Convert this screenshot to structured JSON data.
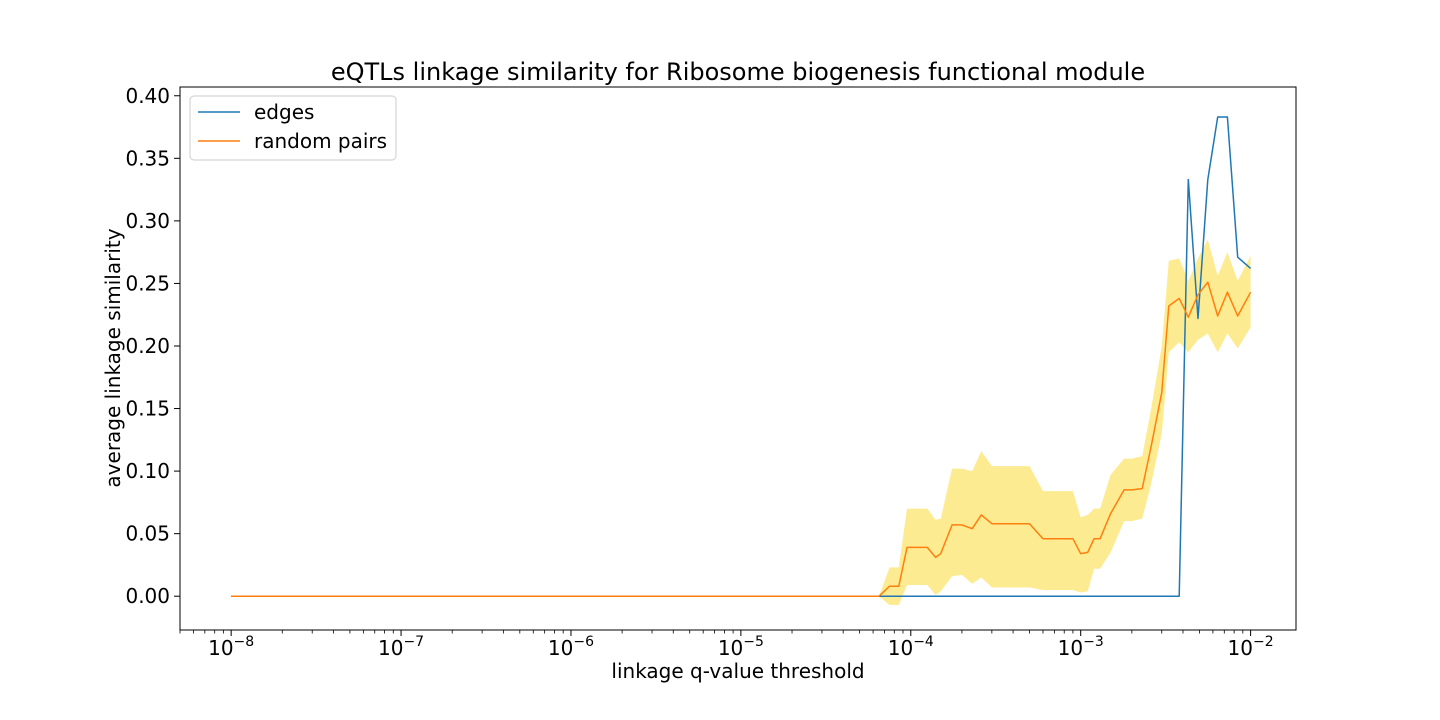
{
  "chart_data": {
    "type": "line",
    "title": "eQTLs linkage similarity for Ribosome biogenesis functional module",
    "xlabel": "linkage q-value threshold",
    "ylabel": "average linkage similarity",
    "x_scale": "log",
    "xlim": [
      5e-09,
      0.0185
    ],
    "ylim": [
      -0.027,
      0.407
    ],
    "x_ticks": [
      {
        "value": 1e-08,
        "base": "10",
        "exp": "−8"
      },
      {
        "value": 1e-07,
        "base": "10",
        "exp": "−7"
      },
      {
        "value": 1e-06,
        "base": "10",
        "exp": "−6"
      },
      {
        "value": 1e-05,
        "base": "10",
        "exp": "−5"
      },
      {
        "value": 0.0001,
        "base": "10",
        "exp": "−4"
      },
      {
        "value": 0.001,
        "base": "10",
        "exp": "−3"
      },
      {
        "value": 0.01,
        "base": "10",
        "exp": "−2"
      }
    ],
    "y_ticks": [
      "0.00",
      "0.05",
      "0.10",
      "0.15",
      "0.20",
      "0.25",
      "0.30",
      "0.35",
      "0.40"
    ],
    "grid": false,
    "legend_position": "top-left",
    "x": [
      1e-08,
      6.5e-05,
      7.5e-05,
      8.5e-05,
      9.5e-05,
      0.000105,
      0.000125,
      0.00014,
      0.00015,
      0.000175,
      0.0002,
      0.00023,
      0.00026,
      0.0003,
      0.00035,
      0.0004,
      0.0005,
      0.0006,
      0.0007,
      0.0009,
      0.001,
      0.0011,
      0.0012,
      0.0013,
      0.0015,
      0.0018,
      0.002,
      0.0023,
      0.0026,
      0.003,
      0.0033,
      0.0038,
      0.0043,
      0.0049,
      0.0056,
      0.0064,
      0.0073,
      0.0084,
      0.01
    ],
    "series": [
      {
        "name": "edges",
        "color": "#1f77b4",
        "values": [
          0,
          0,
          0,
          0,
          0,
          0,
          0,
          0,
          0,
          0,
          0,
          0,
          0,
          0,
          0,
          0,
          0,
          0,
          0,
          0,
          0,
          0,
          0,
          0,
          0,
          0,
          0,
          0,
          0,
          0,
          0,
          0,
          0.333,
          0.222,
          0.333,
          0.383,
          0.383,
          0.271,
          0.262
        ]
      },
      {
        "name": "random pairs",
        "color": "#ff7f0e",
        "band_color": "#fde985",
        "values": [
          0,
          0,
          0.008,
          0.008,
          0.039,
          0.039,
          0.039,
          0.031,
          0.034,
          0.057,
          0.057,
          0.054,
          0.065,
          0.058,
          0.058,
          0.058,
          0.058,
          0.046,
          0.046,
          0.046,
          0.034,
          0.035,
          0.046,
          0.046,
          0.066,
          0.085,
          0.085,
          0.086,
          0.12,
          0.163,
          0.232,
          0.238,
          0.223,
          0.241,
          0.251,
          0.224,
          0.243,
          0.224,
          0.243
        ],
        "band_lower": [
          0,
          0,
          -0.007,
          -0.007,
          0.009,
          0.009,
          0.009,
          0.001,
          0.004,
          0.016,
          0.017,
          0.01,
          0.015,
          0.007,
          0.007,
          0.007,
          0.007,
          0.005,
          0.005,
          0.005,
          0.003,
          0.004,
          0.022,
          0.022,
          0.035,
          0.06,
          0.06,
          0.062,
          0.09,
          0.13,
          0.195,
          0.203,
          0.195,
          0.205,
          0.21,
          0.195,
          0.21,
          0.198,
          0.215
        ],
        "band_upper": [
          0,
          0,
          0.023,
          0.023,
          0.07,
          0.07,
          0.07,
          0.061,
          0.062,
          0.102,
          0.102,
          0.1,
          0.116,
          0.104,
          0.104,
          0.104,
          0.104,
          0.084,
          0.084,
          0.084,
          0.063,
          0.065,
          0.07,
          0.07,
          0.097,
          0.11,
          0.11,
          0.112,
          0.15,
          0.2,
          0.268,
          0.27,
          0.252,
          0.27,
          0.285,
          0.256,
          0.275,
          0.252,
          0.272
        ]
      }
    ]
  }
}
